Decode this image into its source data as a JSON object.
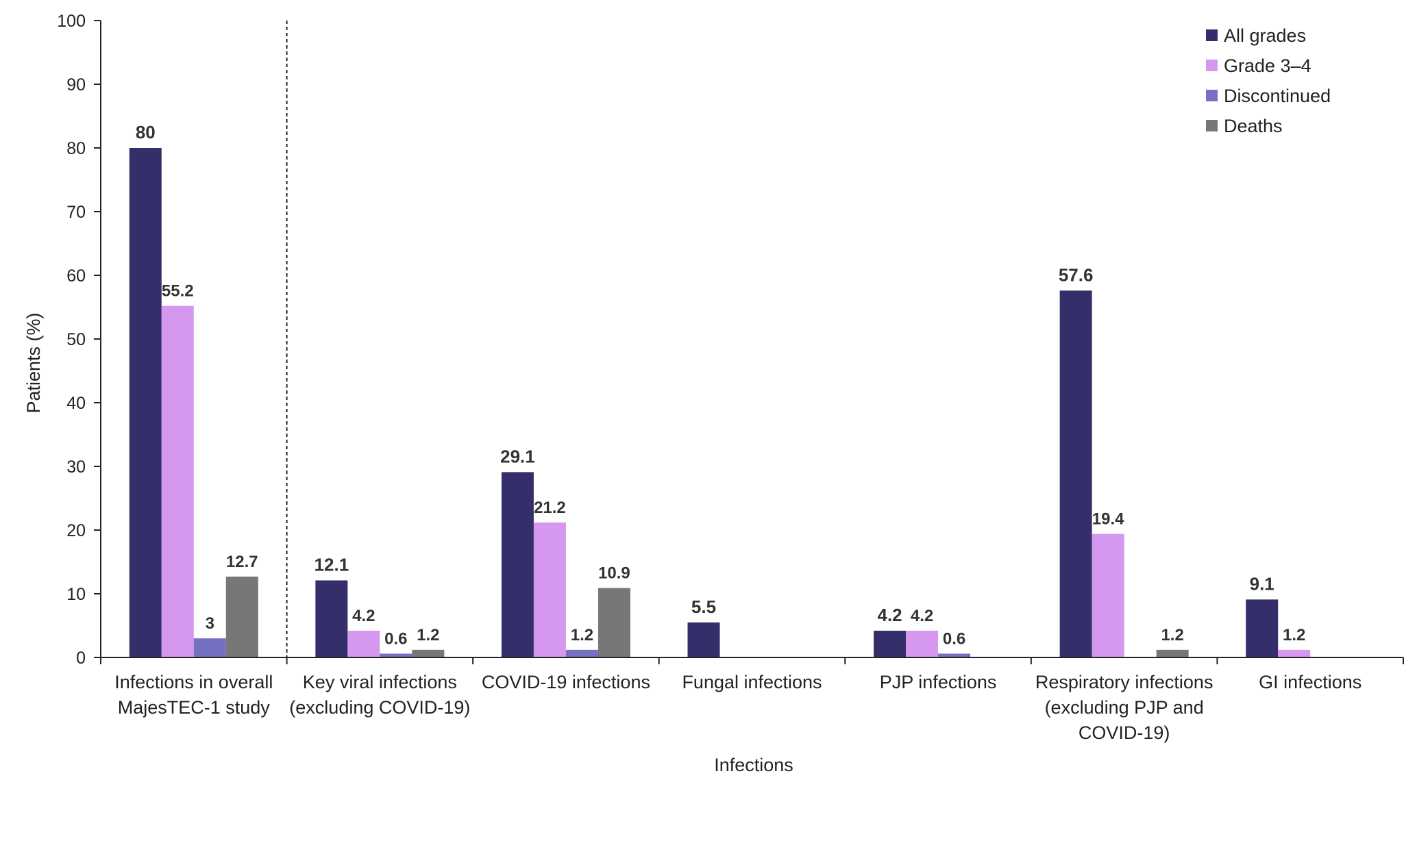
{
  "chart_data": {
    "type": "bar",
    "title": "",
    "xlabel": "Infections",
    "ylabel": "Patients (%)",
    "ylim": [
      0,
      100
    ],
    "yticks": [
      "0",
      "10",
      "20",
      "30",
      "40",
      "50",
      "60",
      "70",
      "80",
      "90",
      "100"
    ],
    "categories": [
      [
        "Infections in overall",
        "MajesTEC-1 study"
      ],
      [
        "Key viral infections",
        "(excluding COVID-19)"
      ],
      [
        "COVID-19 infections"
      ],
      [
        "Fungal infections"
      ],
      [
        "PJP infections"
      ],
      [
        "Respiratory infections",
        "(excluding PJP and",
        "COVID-19)"
      ],
      [
        "GI infections"
      ]
    ],
    "series": [
      {
        "name": "All grades",
        "color": "#342f6b",
        "values": [
          80,
          12.1,
          29.1,
          5.5,
          4.2,
          57.6,
          9.1
        ],
        "labels": [
          "80",
          "12.1",
          "29.1",
          "5.5",
          "4.2",
          "57.6",
          "9.1"
        ]
      },
      {
        "name": "Grade 3–4",
        "color": "#d598ee",
        "values": [
          55.2,
          4.2,
          21.2,
          null,
          4.2,
          19.4,
          1.2
        ],
        "labels": [
          "55.2",
          "4.2",
          "21.2",
          null,
          "4.2",
          "19.4",
          "1.2"
        ]
      },
      {
        "name": "Discontinued",
        "color": "#7570c2",
        "values": [
          3,
          0.6,
          1.2,
          null,
          0.6,
          null,
          null
        ],
        "labels": [
          "3",
          "0.6",
          "1.2",
          null,
          "0.6",
          null,
          null
        ]
      },
      {
        "name": "Deaths",
        "color": "#777777",
        "values": [
          12.7,
          1.2,
          10.9,
          null,
          null,
          1.2,
          null
        ],
        "labels": [
          "12.7",
          "1.2",
          "10.9",
          null,
          null,
          "1.2",
          null
        ]
      }
    ],
    "legend_position": "top-right",
    "separator_after_category": 0,
    "grid": false
  }
}
